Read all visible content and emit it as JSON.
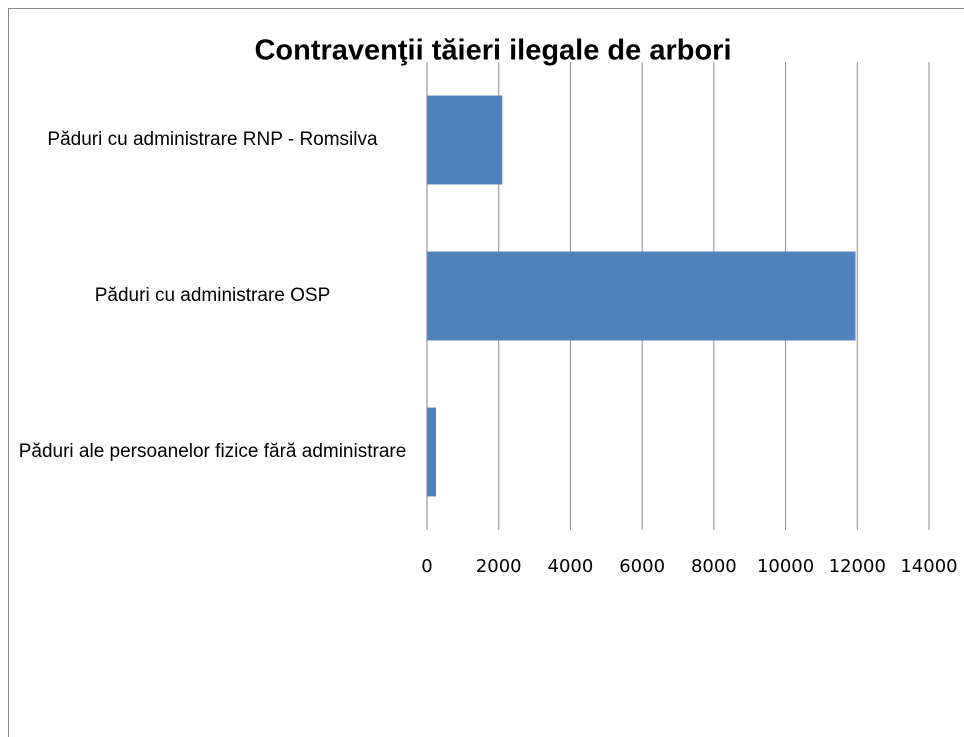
{
  "chart_data": {
    "type": "barh",
    "title": "Contravenţii tăieri ilegale de arbori",
    "categories": [
      "Păduri cu administrare RNP - Romsilva",
      "Păduri cu administrare OSP",
      "Păduri ale persoanelor fizice fără administrare"
    ],
    "values": [
      2100,
      11950,
      250
    ],
    "color": "#4f81bd",
    "xlim": [
      0,
      14000
    ],
    "xticks": [
      0,
      2000,
      4000,
      6000,
      8000,
      10000,
      12000,
      14000
    ],
    "grid": true
  }
}
